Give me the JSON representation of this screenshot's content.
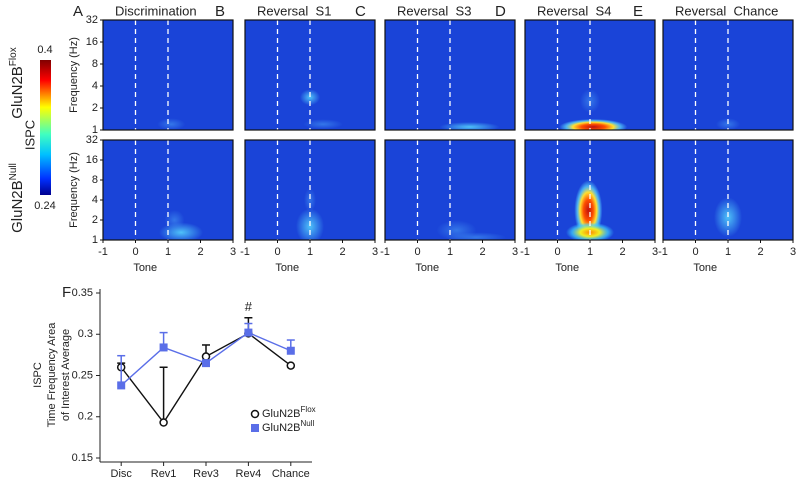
{
  "figure_panels": {
    "panels": [
      {
        "letter": "A",
        "title": "Discrimination"
      },
      {
        "letter": "B",
        "title": "Reversal  S1"
      },
      {
        "letter": "C",
        "title": "Reversal  S3"
      },
      {
        "letter": "D",
        "title": "Reversal  S4"
      },
      {
        "letter": "E",
        "title": "Reversal  Chance"
      }
    ],
    "rows": [
      {
        "label": "GluN2B",
        "superscript": "Flox"
      },
      {
        "label": "GluN2B",
        "superscript": "Null"
      }
    ],
    "y_label": "Frequency (Hz)",
    "x_label": "Tone",
    "xlim": [
      -1,
      3
    ],
    "xticks": [
      -1,
      0,
      1,
      2,
      3
    ],
    "ylim": [
      1,
      32
    ],
    "yticks": [
      1,
      2,
      4,
      8,
      16,
      32
    ],
    "log_y": true,
    "colorbar": {
      "label": "ISPC",
      "max": 0.4,
      "min": 0.24
    }
  },
  "chart_data": {
    "type": "line",
    "letter": "F",
    "y_label": [
      "ISPC",
      "Time Frequency Area",
      "of Interest Average"
    ],
    "categories": [
      "Disc",
      "Rev1",
      "Rev3",
      "Rev4",
      "Chance"
    ],
    "ylim": [
      0.15,
      0.35
    ],
    "yticks": [
      0.15,
      0.2,
      0.25,
      0.3,
      0.35
    ],
    "series": [
      {
        "name": "GluN2B",
        "superscript": "Flox",
        "color": "#111111",
        "marker": "open-circle",
        "values": [
          0.26,
          0.193,
          0.273,
          0.301,
          0.262
        ],
        "errors": [
          0.005,
          0.067,
          0.014,
          0.019,
          0
        ]
      },
      {
        "name": "GluN2B",
        "superscript": "Null",
        "color": "#5a6ee8",
        "marker": "square",
        "values": [
          0.238,
          0.284,
          0.265,
          0.302,
          0.28
        ],
        "errors": [
          0.036,
          0.018,
          0,
          0.011,
          0.013
        ]
      }
    ],
    "annotation": {
      "text": "#",
      "category": 3
    }
  }
}
